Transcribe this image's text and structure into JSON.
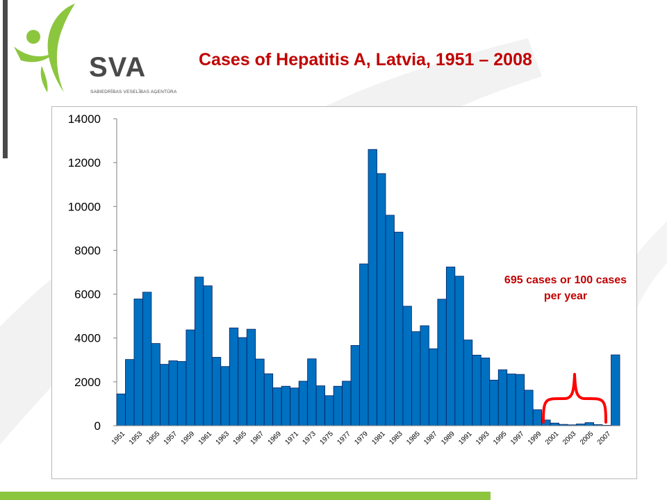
{
  "header": {
    "title": "Cases of Hepatitis A, Latvia, 1951 – 2008",
    "logo_text": "SVA",
    "logo_subtext": "SABIEDRĪBAS VESELĪBAS AĢENTŪRA"
  },
  "colors": {
    "title": "#c00000",
    "bar_fill": "#0070c0",
    "bar_stroke": "#002060",
    "brace": "#ff0000",
    "accent_green": "#8cc63f",
    "logo_gray": "#4a4a4a"
  },
  "annotation": {
    "text": "695 cases or  100 cases per year"
  },
  "chart_data": {
    "type": "bar",
    "title": "",
    "xlabel": "",
    "ylabel": "",
    "ylim": [
      0,
      14000
    ],
    "yticks": [
      0,
      2000,
      4000,
      6000,
      8000,
      10000,
      12000,
      14000
    ],
    "grid": false,
    "legend": "none",
    "categories": [
      "1951",
      "1952",
      "1953",
      "1954",
      "1955",
      "1956",
      "1957",
      "1958",
      "1959",
      "1960",
      "1961",
      "1962",
      "1963",
      "1964",
      "1965",
      "1966",
      "1967",
      "1968",
      "1969",
      "1970",
      "1971",
      "1972",
      "1973",
      "1974",
      "1975",
      "1976",
      "1977",
      "1978",
      "1979",
      "1980",
      "1981",
      "1982",
      "1983",
      "1984",
      "1985",
      "1986",
      "1987",
      "1988",
      "1989",
      "1990",
      "1991",
      "1992",
      "1993",
      "1994",
      "1995",
      "1996",
      "1997",
      "1998",
      "1999",
      "2000",
      "2001",
      "2002",
      "2003",
      "2004",
      "2005",
      "2006",
      "2007",
      "2008"
    ],
    "tick_labels_shown": [
      "1951",
      "1953",
      "1955",
      "1957",
      "1959",
      "1961",
      "1963",
      "1965",
      "1967",
      "1969",
      "1971",
      "1973",
      "1975",
      "1977",
      "1979",
      "1981",
      "1983",
      "1985",
      "1987",
      "1989",
      "1991",
      "1993",
      "1995",
      "1997",
      "1999",
      "2001",
      "2003",
      "2005",
      "2007"
    ],
    "values": [
      1450,
      3020,
      5780,
      6090,
      3750,
      2800,
      2960,
      2930,
      4370,
      6780,
      6380,
      3120,
      2700,
      4460,
      4020,
      4400,
      3040,
      2370,
      1730,
      1800,
      1720,
      2030,
      3050,
      1820,
      1370,
      1800,
      2030,
      3660,
      7380,
      12600,
      11500,
      9600,
      8830,
      5450,
      4290,
      4560,
      3510,
      5770,
      7240,
      6820,
      3910,
      3220,
      3090,
      2080,
      2550,
      2360,
      2340,
      1620,
      730,
      260,
      120,
      60,
      40,
      80,
      140,
      50,
      20,
      3230
    ]
  }
}
